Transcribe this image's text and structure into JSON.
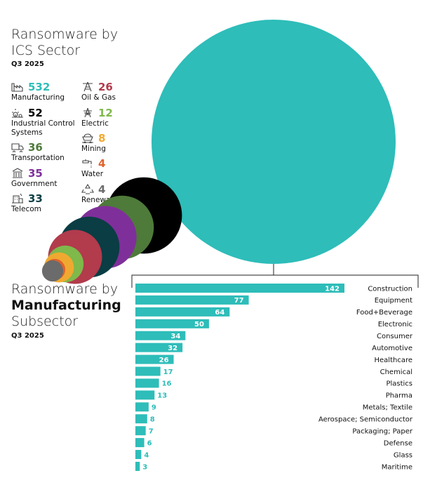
{
  "top_section": {
    "title_line1": "Ransomware by",
    "title_line2": "ICS Sector",
    "period": "Q3 2025"
  },
  "bottom_section": {
    "title_line1": "Ransomware by",
    "title_line2": "Manufacturing",
    "title_line3": "Subsector",
    "period": "Q3 2025"
  },
  "chart_data": [
    {
      "type": "bubble",
      "title": "Ransomware by ICS Sector",
      "subtitle": "Q3 2025",
      "series": [
        {
          "name": "Manufacturing",
          "value": 532,
          "color": "#2ebdb9",
          "icon": "factory-icon"
        },
        {
          "name": "Industrial Control Systems",
          "value": 52,
          "color": "#000000",
          "icon": "gears-icon"
        },
        {
          "name": "Transportation",
          "value": 36,
          "color": "#4e7a3a",
          "icon": "truck-icon"
        },
        {
          "name": "Government",
          "value": 35,
          "color": "#7f2f9a",
          "icon": "government-building-icon"
        },
        {
          "name": "Telecom",
          "value": 33,
          "color": "#0a3d44",
          "icon": "telecom-building-icon"
        },
        {
          "name": "Oil & Gas",
          "value": 26,
          "color": "#b23b4c",
          "icon": "oil-derrick-icon"
        },
        {
          "name": "Electric",
          "value": 12,
          "color": "#7fb84b",
          "icon": "power-tower-icon"
        },
        {
          "name": "Mining",
          "value": 8,
          "color": "#f0a930",
          "icon": "mine-cart-icon"
        },
        {
          "name": "Water",
          "value": 4,
          "color": "#e0622b",
          "icon": "water-faucet-icon"
        },
        {
          "name": "Renewables",
          "value": 4,
          "color": "#6b6b6b",
          "icon": "recycle-icon"
        }
      ]
    },
    {
      "type": "bar",
      "orientation": "horizontal",
      "title": "Ransomware by Manufacturing Subsector",
      "subtitle": "Q3 2025",
      "bar_color": "#2ebdb9",
      "categories": [
        "Construction",
        "Equipment",
        "Food+Beverage",
        "Electronic",
        "Consumer",
        "Automotive",
        "Healthcare",
        "Chemical",
        "Plastics",
        "Pharma",
        "Metals; Textile",
        "Aerospace; Semiconductor",
        "Packaging; Paper",
        "Defense",
        "Glass",
        "Maritime"
      ],
      "values": [
        142,
        77,
        64,
        50,
        34,
        32,
        26,
        17,
        16,
        13,
        9,
        8,
        7,
        6,
        4,
        3
      ]
    }
  ]
}
